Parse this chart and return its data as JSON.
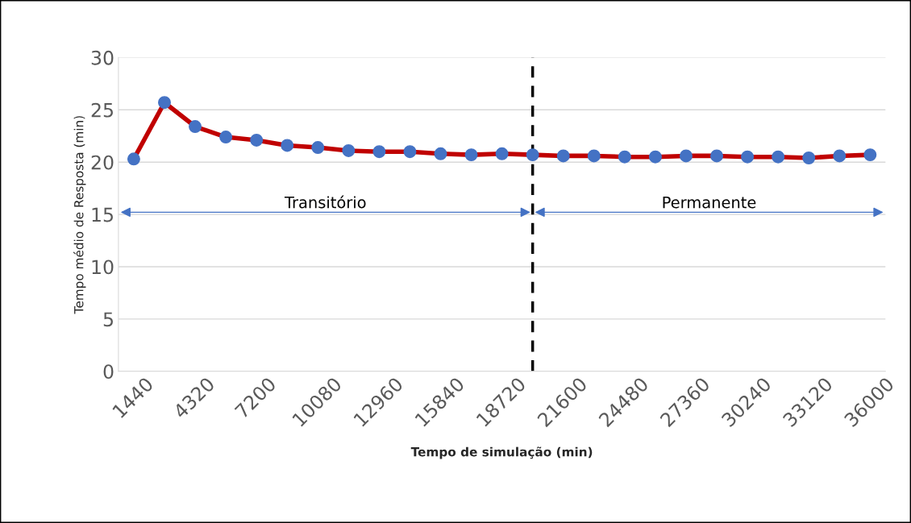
{
  "chart_data": {
    "type": "line",
    "x": [
      1440,
      2880,
      4320,
      5760,
      7200,
      8640,
      10080,
      11520,
      12960,
      14400,
      15840,
      17280,
      18720,
      20160,
      21600,
      23040,
      24480,
      25920,
      27360,
      28800,
      30240,
      31680,
      33120,
      34560,
      36000
    ],
    "series": [
      {
        "color": "#c00000",
        "marker": "circle",
        "colors": [
          "#4472c4",
          "#4472c4",
          "#4472c4",
          "#4472c4",
          "#4472c4",
          "#4472c4",
          "#4472c4",
          "#4472c4",
          "#4472c4",
          "#4472c4",
          "#4472c4",
          "#4472c4",
          "#4472c4",
          "#4472c4",
          "#4472c4",
          "#4472c4",
          "#4472c4",
          "#4472c4",
          "#4472c4",
          "#4472c4",
          "#4472c4",
          "#4472c4",
          "#4472c4",
          "#4472c4",
          "#4472c4"
        ],
        "values": [
          20.3,
          25.7,
          23.4,
          22.4,
          22.1,
          21.6,
          21.4,
          21.1,
          21.0,
          21.0,
          20.8,
          20.7,
          20.8,
          20.7,
          20.6,
          20.6,
          20.5,
          20.5,
          20.6,
          20.6,
          20.5,
          20.5,
          20.4,
          20.6,
          20.7
        ]
      }
    ],
    "xlabel": "Tempo de simulação (min)",
    "ylabel": "Tempo médio de Resposta (min)",
    "xlim": [
      720,
      36720
    ],
    "xticks": [
      1440,
      4320,
      7200,
      10080,
      12960,
      15840,
      18720,
      21600,
      24480,
      27360,
      30240,
      33120,
      36000
    ],
    "ylim": [
      0,
      30
    ],
    "yticks": [
      0,
      5,
      10,
      15,
      20,
      25,
      30
    ],
    "grid": "y",
    "legend": false,
    "ref_lines": [
      {
        "axis": "x",
        "value": 20160,
        "color": "#000000",
        "line_style": "dashed"
      }
    ],
    "annotations": [
      "Transitório",
      "Permanente"
    ]
  }
}
